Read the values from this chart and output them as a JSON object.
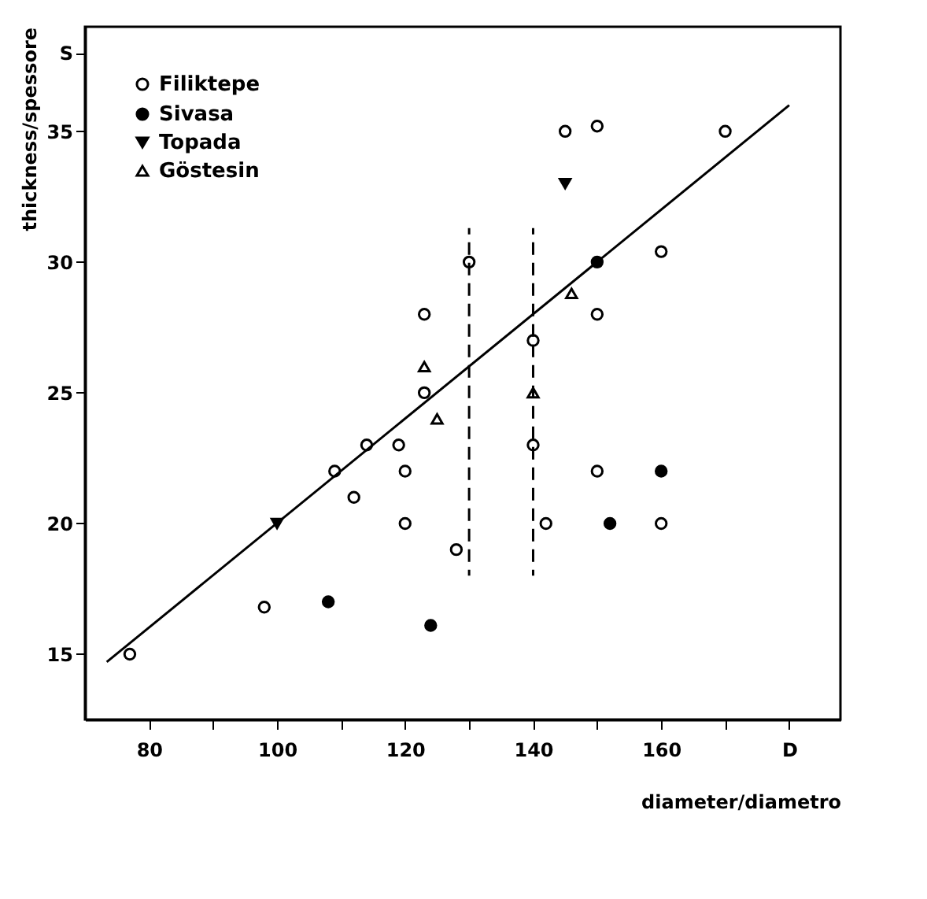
{
  "chart_data": {
    "type": "scatter",
    "xlabel": "diameter/diametro",
    "ylabel": "thickness/spessore",
    "xlim": [
      70,
      188
    ],
    "ylim": [
      12.5,
      39
    ],
    "xticks": [
      80,
      {
        "value": 90,
        "label": null
      },
      100,
      {
        "value": 110,
        "label": null
      },
      120,
      {
        "value": 130,
        "label": null
      },
      140,
      {
        "value": 150,
        "label": null
      },
      160,
      {
        "value": 170,
        "label": null
      },
      {
        "value": 180,
        "label": "D"
      }
    ],
    "yticks": [
      15,
      20,
      25,
      30,
      35,
      {
        "value": 38,
        "label": "S"
      }
    ],
    "grid": false,
    "legend": "top left",
    "series": [
      {
        "name": "Filiktepe",
        "color": "#000000",
        "marker": "circle",
        "x": [
          77,
          98,
          109,
          112,
          114,
          119,
          120,
          120,
          128,
          123,
          123,
          145,
          150,
          170,
          130,
          160,
          150,
          140,
          140,
          150,
          142,
          160
        ],
        "values": [
          15,
          16.8,
          22,
          21,
          23,
          23,
          22,
          20,
          19,
          25,
          28,
          35,
          35.2,
          35,
          30,
          30.4,
          28,
          27,
          23,
          22,
          20,
          20
        ]
      },
      {
        "name": "Sivasa",
        "color": "#000000",
        "marker": "filled circle",
        "x": [
          108,
          124,
          150,
          160,
          152
        ],
        "values": [
          17,
          16.1,
          30,
          22,
          20
        ]
      },
      {
        "name": "Topada",
        "color": "#000000",
        "marker": "triangle-down",
        "x": [
          100,
          145
        ],
        "values": [
          20,
          33
        ]
      },
      {
        "name": "Göstesin",
        "color": "#000000",
        "marker": "triangle",
        "x": [
          123,
          125,
          146,
          140
        ],
        "values": [
          26,
          24,
          28.8,
          25
        ]
      },
      {
        "type": "line",
        "color": "#000000",
        "line_style": "solid",
        "x": [
          73.4,
          180
        ],
        "values": [
          14.7,
          36
        ]
      },
      {
        "type": "line",
        "color": "#000000",
        "line_style": "dashed",
        "x": [
          130,
          130
        ],
        "values": [
          18,
          31.3
        ]
      },
      {
        "type": "line",
        "color": "#000000",
        "line_style": "dashed",
        "x": [
          140,
          140
        ],
        "values": [
          18,
          31.3
        ]
      }
    ]
  }
}
